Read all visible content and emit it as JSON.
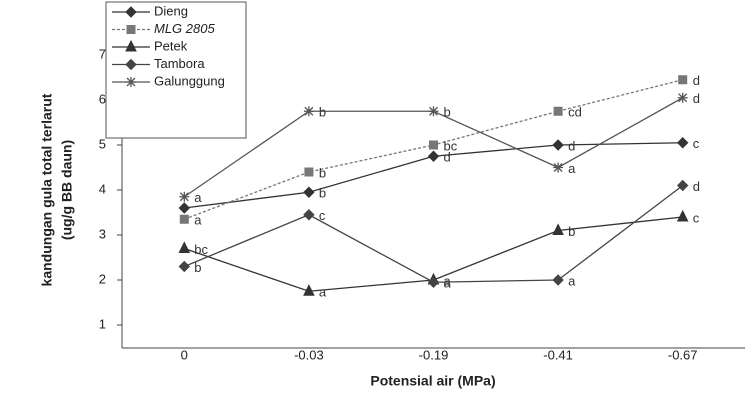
{
  "chart_data": {
    "type": "line",
    "x_label": "Potensial air (MPa)",
    "y_label": [
      "kandungan gula total terlarut",
      "(ug/g BB daun)"
    ],
    "categories": [
      "0",
      "-0.03",
      "-0.19",
      "-0.41",
      "-0.67"
    ],
    "ylim": [
      0.5,
      7.5
    ],
    "yticks": [
      1,
      2,
      3,
      4,
      5,
      6,
      7
    ],
    "series": [
      {
        "name": "Dieng",
        "color": "#333333",
        "marker": "diamond",
        "dash": false,
        "values": [
          3.6,
          3.95,
          4.75,
          5.0,
          5.05
        ],
        "letters": [
          null,
          "b",
          "d",
          "d",
          "c"
        ]
      },
      {
        "name": "MLG 2805",
        "color": "#777777",
        "marker": "square",
        "dash": true,
        "values": [
          3.35,
          4.4,
          5.0,
          5.75,
          6.45
        ],
        "letters": [
          "a",
          "b",
          "bc",
          "cd",
          "d"
        ]
      },
      {
        "name": "Petek",
        "color": "#333333",
        "marker": "triangle",
        "dash": false,
        "values": [
          2.7,
          1.75,
          2.0,
          3.1,
          3.4
        ],
        "letters": [
          "bc",
          "a",
          "a",
          "b",
          "c"
        ]
      },
      {
        "name": "Tambora",
        "color": "#444444",
        "marker": "diamond",
        "dash": false,
        "values": [
          2.3,
          3.45,
          1.95,
          2.0,
          4.1
        ],
        "letters": [
          "b",
          "c",
          "a",
          "a",
          "d"
        ]
      },
      {
        "name": "Galunggung",
        "color": "#555555",
        "marker": "star",
        "dash": false,
        "values": [
          3.85,
          5.75,
          5.75,
          4.5,
          6.05
        ],
        "letters": [
          "a",
          "b",
          "b",
          "a",
          "d"
        ]
      }
    ]
  }
}
